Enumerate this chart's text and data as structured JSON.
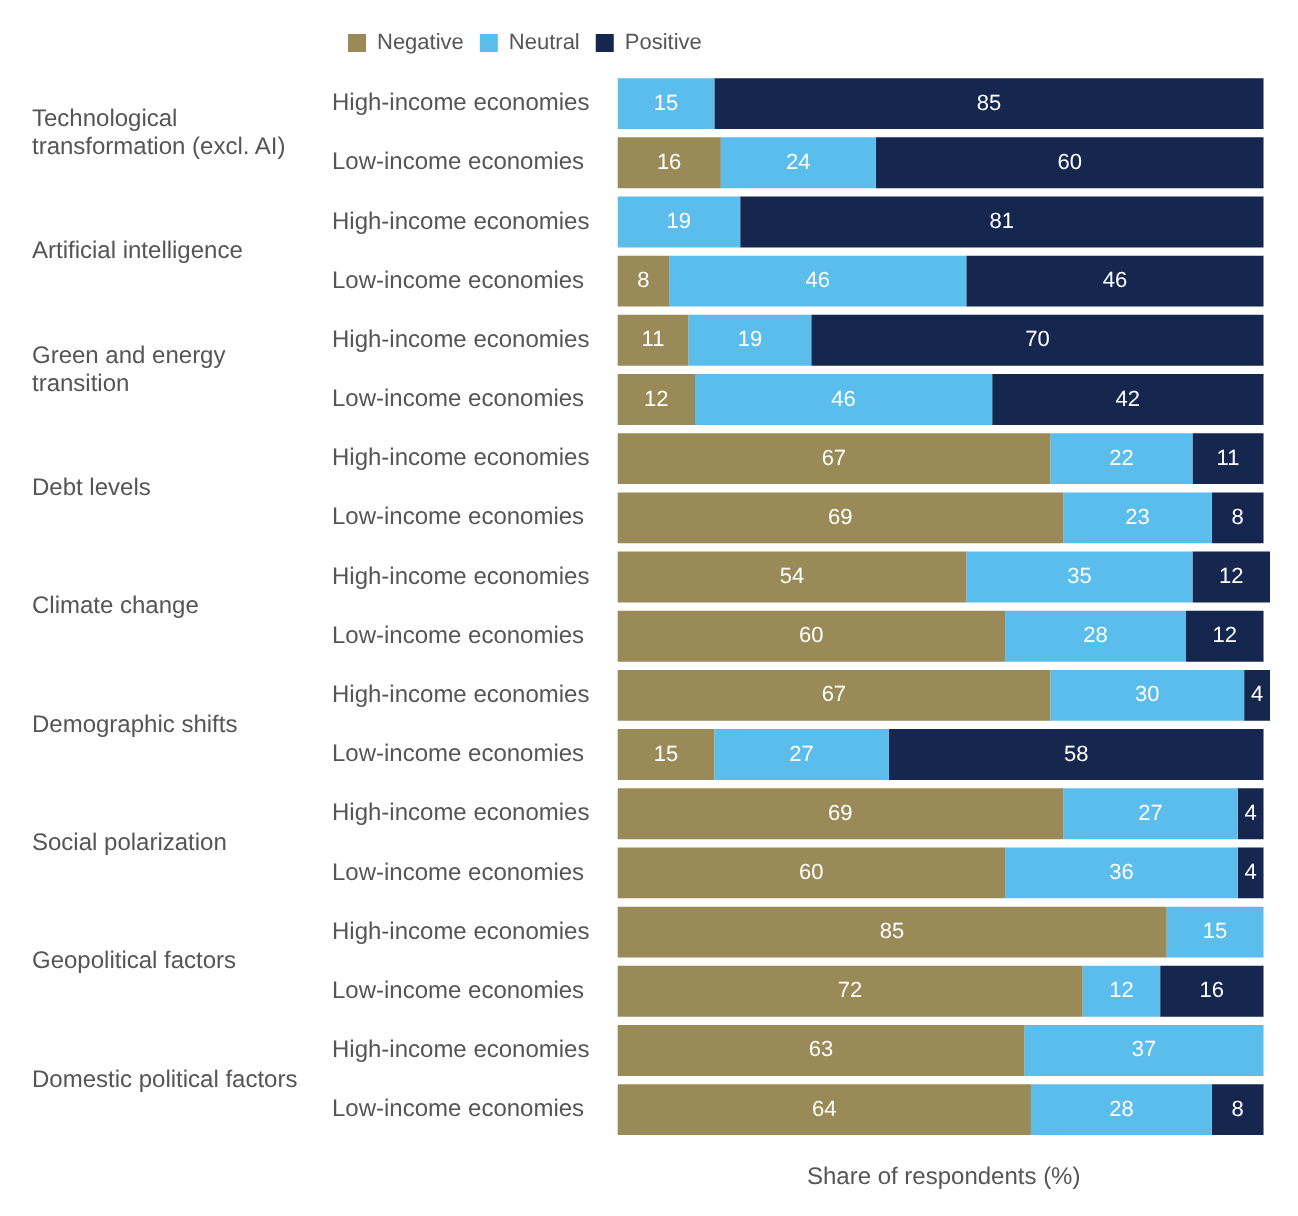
{
  "chart_data": {
    "type": "bar",
    "orientation": "horizontal",
    "stacked": true,
    "data_labels": true,
    "tick_labels": "y",
    "legend": "top left",
    "grid": false,
    "xlabel": "Share of respondents (%)",
    "annotations": [
      "Technological transformation (excl. AI)",
      "Artificial intelligence",
      "Green and energy transition",
      "Debt levels",
      "Climate change",
      "Demographic shifts",
      "Social polarization",
      "Geopolitical factors",
      "Domestic political factors"
    ],
    "categories": [
      "High-income economies",
      "Low-income economies",
      "High-income economies",
      "Low-income economies",
      "High-income economies",
      "Low-income economies",
      "High-income economies",
      "Low-income economies",
      "High-income economies",
      "Low-income economies",
      "High-income economies",
      "Low-income economies",
      "High-income economies",
      "Low-income economies",
      "High-income economies",
      "Low-income economies",
      "High-income economies",
      "Low-income economies"
    ],
    "series": [
      {
        "name": "Negative",
        "color": "#9a8a58",
        "values": [
          null,
          16,
          null,
          8,
          11,
          12,
          67,
          69,
          54,
          60,
          67,
          15,
          69,
          60,
          85,
          72,
          63,
          64
        ]
      },
      {
        "name": "Neutral",
        "color": "#5bbdeb",
        "values": [
          15,
          24,
          19,
          46,
          19,
          46,
          22,
          23,
          35,
          28,
          30,
          27,
          27,
          36,
          15,
          12,
          37,
          28
        ]
      },
      {
        "name": "Positive",
        "color": "#15264f",
        "values": [
          85,
          60,
          81,
          46,
          70,
          42,
          11,
          8,
          12,
          12,
          4,
          58,
          4,
          4,
          null,
          16,
          null,
          8
        ]
      }
    ]
  }
}
